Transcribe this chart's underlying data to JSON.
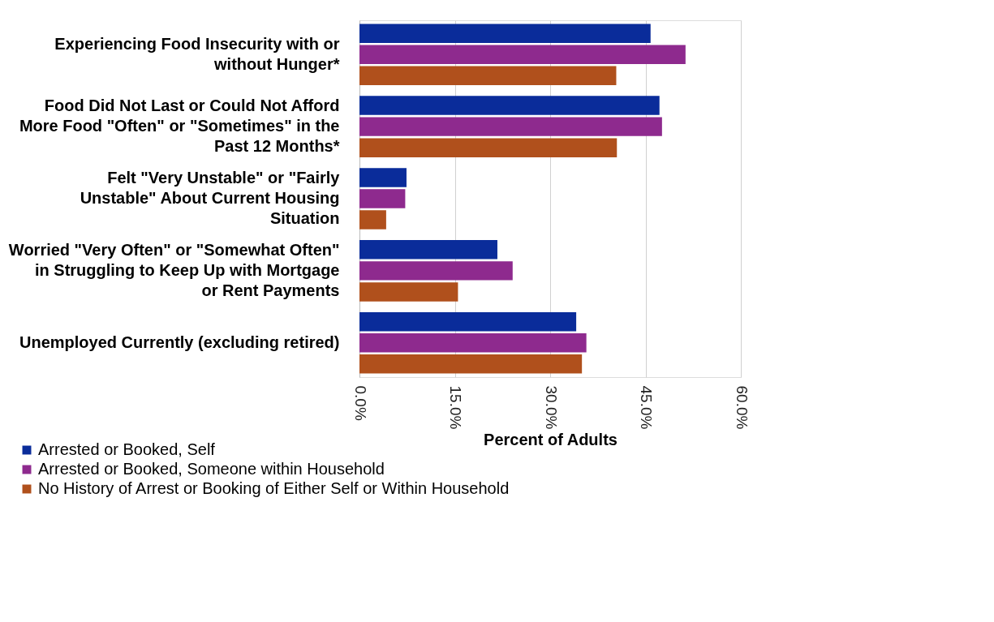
{
  "chart_data": {
    "type": "bar",
    "orientation": "horizontal",
    "xlabel": "Percent of Adults",
    "categories": [
      "Experiencing Food Insecurity with or without Hunger*",
      "Food Did Not Last or Could Not Afford More Food \"Often\" or \"Sometimes\" in the Past 12 Months*",
      "Felt \"Very Unstable\" or \"Fairly Unstable\" About Current Housing Situation",
      "Worried \"Very Often\" or \"Somewhat Often\" in Struggling to Keep Up with Mortgage or Rent Payments",
      "Unemployed Currently (excluding retired)"
    ],
    "series": [
      {
        "name": "Arrested or Booked, Self",
        "color": "#0a2c9a",
        "values": [
          45.8,
          47.2,
          7.4,
          21.7,
          34.1
        ]
      },
      {
        "name": "Arrested or Booked, Someone within Household",
        "color": "#8e2a8e",
        "values": [
          51.3,
          47.6,
          7.2,
          24.1,
          35.7
        ]
      },
      {
        "name": "No History of Arrest or Booking of Either Self or Within Household",
        "color": "#b0501c",
        "values": [
          40.4,
          40.5,
          4.2,
          15.5,
          35.0
        ]
      }
    ],
    "xlim": [
      0,
      60
    ],
    "xticks": [
      {
        "value": 0,
        "label": "0.0%"
      },
      {
        "value": 15,
        "label": "15.0%"
      },
      {
        "value": 30,
        "label": "30.0%"
      },
      {
        "value": 45,
        "label": "45.0%"
      },
      {
        "value": 60,
        "label": "60.0%"
      }
    ],
    "grid": "x",
    "legend": "bottom left"
  }
}
